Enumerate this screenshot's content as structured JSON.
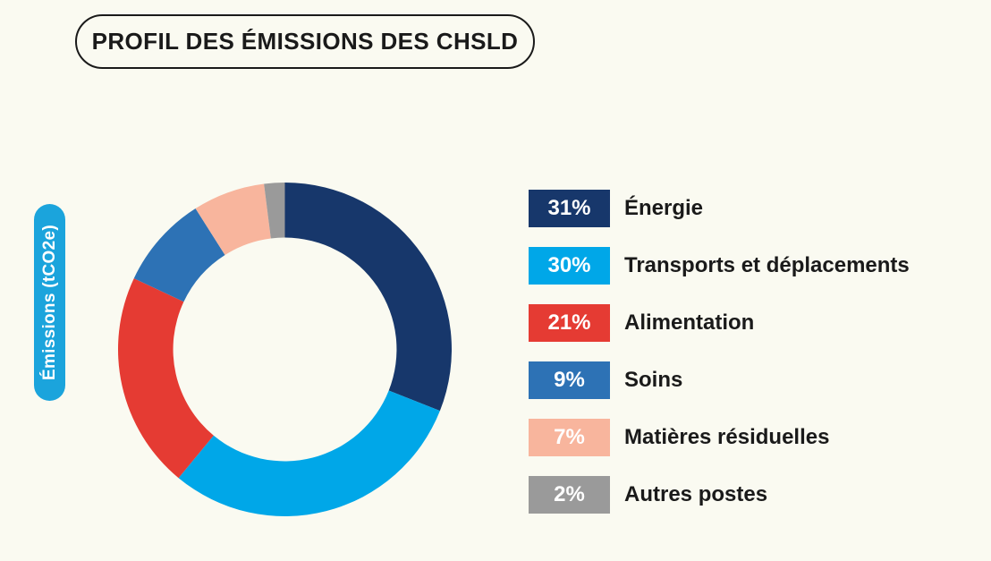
{
  "background_color": "#FAFAF1",
  "title": {
    "text": "PROFIL DES ÉMISSIONS DES CHSLD"
  },
  "axis_label": {
    "text": "Émissions (tCO2e)",
    "bg_color": "#1BA4DC",
    "text_color": "#FFFFFF"
  },
  "chart_data": {
    "type": "pie",
    "subtype": "donut",
    "title": "PROFIL DES ÉMISSIONS DES CHSLD",
    "unit_label": "Émissions (tCO2e)",
    "start_angle_deg": 0,
    "direction": "clockwise",
    "inner_radius_ratio": 0.67,
    "hole_color": "#FFFFFF",
    "legend_position": "right",
    "segments": [
      {
        "label": "Énergie",
        "value_pct": 31,
        "badge": "31%",
        "color": "#17376B"
      },
      {
        "label": "Transports et déplacements",
        "value_pct": 30,
        "badge": "30%",
        "color": "#00A7E8"
      },
      {
        "label": "Alimentation",
        "value_pct": 21,
        "badge": "21%",
        "color": "#E53B33"
      },
      {
        "label": "Soins",
        "value_pct": 9,
        "badge": "9%",
        "color": "#2D72B5"
      },
      {
        "label": "Matières résiduelles",
        "value_pct": 7,
        "badge": "7%",
        "color": "#F8B59D"
      },
      {
        "label": "Autres postes",
        "value_pct": 2,
        "badge": "2%",
        "color": "#9A9A9A"
      }
    ]
  }
}
